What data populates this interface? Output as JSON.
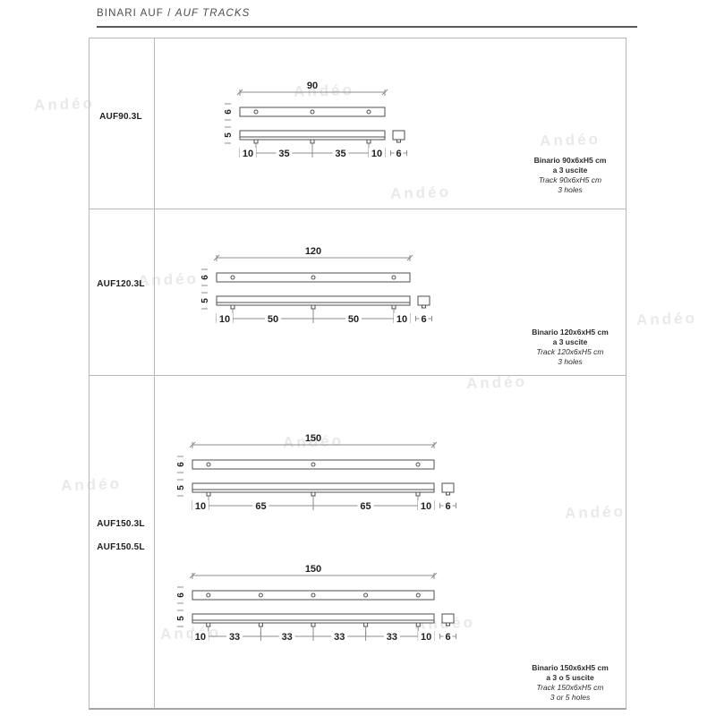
{
  "title": {
    "main": "BINARI AUF",
    "separator": " / ",
    "secondary": "AUF TRACKS"
  },
  "watermark": {
    "text": "Andéo"
  },
  "colors": {
    "title": "#4d4d4d",
    "rule": "#5a5a5a",
    "table_border": "#b8b8b8",
    "bar_line": "#4f4f4f",
    "dim_line": "#8c8c8c",
    "dim_text": "#1f1f1f",
    "code_text": "#1f1f1f",
    "desc_text": "#2b2b2b",
    "watermark": "#e9e9e9"
  },
  "rows": [
    {
      "codes": [
        "AUF90.3L"
      ],
      "description": [
        {
          "text": "Binario 90x6xH5 cm",
          "emphasis": "bold"
        },
        {
          "text": "a 3 uscite",
          "emphasis": "bold"
        },
        {
          "text": "Track 90x6xH5 cm",
          "emphasis": "italic"
        },
        {
          "text": "3 holes",
          "emphasis": "italic"
        }
      ],
      "drawings": [
        {
          "length_label": "90",
          "length_cm": 90,
          "segments": [
            10,
            35,
            35,
            10
          ],
          "height_label": "6",
          "depth_label": "5",
          "cap_label": "6"
        }
      ]
    },
    {
      "codes": [
        "AUF120.3L"
      ],
      "description": [
        {
          "text": "Binario 120x6xH5 cm",
          "emphasis": "bold"
        },
        {
          "text": "a 3 uscite",
          "emphasis": "bold"
        },
        {
          "text": "Track 120x6xH5 cm",
          "emphasis": "italic"
        },
        {
          "text": "3 holes",
          "emphasis": "italic"
        }
      ],
      "drawings": [
        {
          "length_label": "120",
          "length_cm": 120,
          "segments": [
            10,
            50,
            50,
            10
          ],
          "height_label": "6",
          "depth_label": "5",
          "cap_label": "6"
        }
      ]
    },
    {
      "codes": [
        "AUF150.3L",
        "AUF150.5L"
      ],
      "description": [
        {
          "text": "Binario 150x6xH5 cm",
          "emphasis": "bold"
        },
        {
          "text": "a 3 o 5 uscite",
          "emphasis": "bold"
        },
        {
          "text": "Track 150x6xH5 cm",
          "emphasis": "italic"
        },
        {
          "text": "3 or 5 holes",
          "emphasis": "italic"
        }
      ],
      "drawings": [
        {
          "length_label": "150",
          "length_cm": 150,
          "segments": [
            10,
            65,
            65,
            10
          ],
          "height_label": "6",
          "depth_label": "5",
          "cap_label": "6"
        },
        {
          "length_label": "150",
          "length_cm": 150,
          "segments": [
            10,
            33,
            33,
            33,
            33,
            10
          ],
          "height_label": "6",
          "depth_label": "5",
          "cap_label": "6"
        }
      ]
    }
  ]
}
